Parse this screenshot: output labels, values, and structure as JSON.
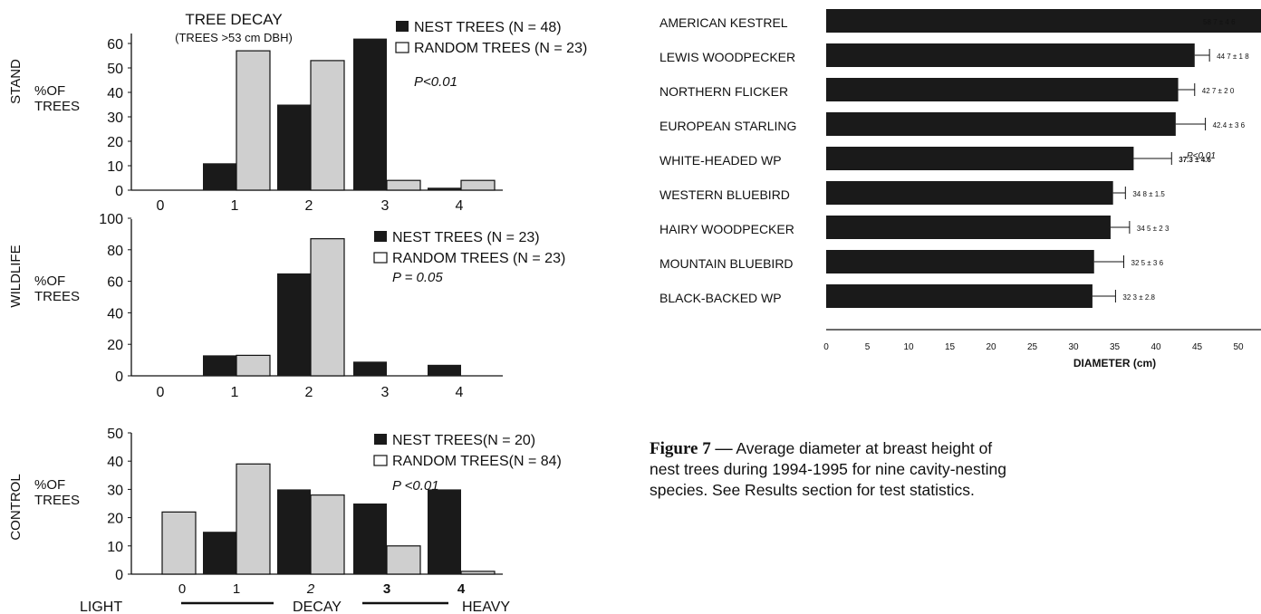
{
  "left_figure": {
    "title": "TREE DECAY",
    "subtitle": "(TREES >53 cm DBH)",
    "x_axis_left": "LIGHT",
    "x_axis_mid": "DECAY",
    "x_axis_right": "HEAVY",
    "ylabel": "%OF TREES"
  },
  "right_figure": {
    "p_value": "P<0.01",
    "caption_prefix": "Figure 7 —",
    "caption_text": "Average diameter at breast height of nest trees during 1994-1995 for nine cavity-nesting species. See Results section for test statistics."
  },
  "colors": {
    "nest": "#1a1a1a",
    "random": "#cfcfcf",
    "axis": "#111111"
  },
  "chart_data": [
    {
      "type": "bar",
      "panel": "STAND",
      "categories": [
        "0",
        "1",
        "2",
        "3",
        "4"
      ],
      "series": [
        {
          "name": "NEST TREES (N = 48)",
          "values": [
            0,
            11,
            35,
            62,
            1
          ]
        },
        {
          "name": "RANDOM TREES (N = 23)",
          "values": [
            0,
            57,
            53,
            4,
            4
          ]
        }
      ],
      "p_value": "P<0.01",
      "ylim": [
        0,
        70
      ],
      "yticks": [
        0,
        10,
        20,
        30,
        40,
        50,
        60
      ],
      "ylabel": "%OF TREES",
      "row_label": "STAND"
    },
    {
      "type": "bar",
      "panel": "WILDLIFE",
      "categories": [
        "0",
        "1",
        "2",
        "3",
        "4"
      ],
      "series": [
        {
          "name": "NEST TREES (N = 23)",
          "values": [
            0,
            13,
            65,
            9,
            7
          ]
        },
        {
          "name": "RANDOM TREES (N = 23)",
          "values": [
            0,
            13,
            87,
            0,
            0
          ]
        }
      ],
      "p_value": "P = 0.05",
      "ylim": [
        0,
        100
      ],
      "yticks": [
        0,
        20,
        40,
        60,
        80,
        100
      ],
      "ylabel": "%OF TREES",
      "row_label": "WILDLIFE"
    },
    {
      "type": "bar",
      "panel": "CONTROL",
      "categories": [
        "0",
        "1",
        "2",
        "3",
        "4"
      ],
      "series": [
        {
          "name": "NEST TREES(N = 20)",
          "values": [
            0,
            15,
            30,
            25,
            30
          ]
        },
        {
          "name": "RANDOM TREES(N = 84)",
          "values": [
            22,
            39,
            28,
            10,
            1
          ]
        }
      ],
      "p_value": "P <0.01",
      "ylim": [
        0,
        50
      ],
      "yticks": [
        0,
        10,
        20,
        30,
        40,
        50
      ],
      "ylabel": "%OF TREES",
      "row_label": "CONTROL"
    },
    {
      "type": "bar",
      "orientation": "horizontal",
      "categories": [
        "AMERICAN KESTREL",
        "LEWIS WOODPECKER",
        "NORTHERN FLICKER",
        "EUROPEAN STARLING",
        "WHITE-HEADED WP",
        "WESTERN BLUEBIRD",
        "HAIRY WOODPECKER",
        "MOUNTAIN BLUEBIRD",
        "BLACK-BACKED WP"
      ],
      "values": [
        58.7,
        44.7,
        42.7,
        42.4,
        37.3,
        34.8,
        34.5,
        32.5,
        32.3
      ],
      "errors": [
        4.6,
        1.8,
        2.0,
        3.6,
        4.6,
        1.5,
        2.3,
        3.6,
        2.8
      ],
      "value_labels": [
        "58 7 ± 4 6",
        "44 7 ± 1 8",
        "42 7 ± 2 0",
        "42.4 ± 3 6",
        "37.3 ± 4.6",
        "34 8 ± 1.5",
        "34 5 ± 2 3",
        "32 5 ± 3 6",
        "32 3 ± 2.8"
      ],
      "xlim": [
        0,
        70
      ],
      "xticks": [
        0,
        5,
        10,
        15,
        20,
        25,
        30,
        35,
        40,
        45,
        50,
        55,
        60,
        65,
        70
      ],
      "xlabel": "DIAMETER (cm)"
    }
  ]
}
